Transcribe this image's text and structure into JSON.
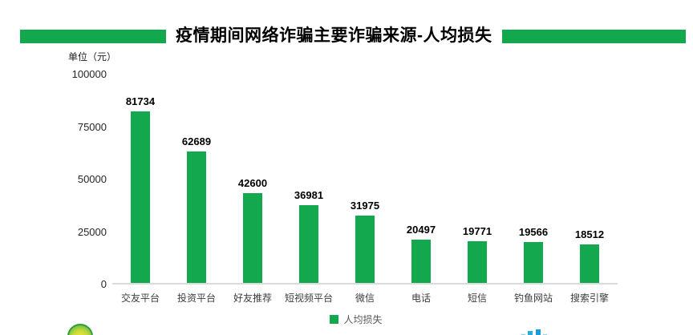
{
  "title": "疫情期间网络诈骗主要诈骗来源-人均损失",
  "unit_label": "单位（元）",
  "legend": {
    "label": "人均损失"
  },
  "colors": {
    "accent_green": "#14A84E",
    "axis_line": "#DBDBDB",
    "value_label": "#000000",
    "category_label": "#3D3D3D",
    "legend_label": "#595959",
    "logo_blue_dark": "#1B9CD8",
    "logo_blue_light": "#7FD0F0"
  },
  "chart_data": {
    "type": "bar",
    "title": "疫情期间网络诈骗主要诈骗来源-人均损失",
    "unit": "单位（元）",
    "series_name": "人均损失",
    "categories": [
      "交友平台",
      "投资平台",
      "好友推荐",
      "短视频平台",
      "微信",
      "电话",
      "短信",
      "钓鱼网站",
      "搜索引擎"
    ],
    "values": [
      81734,
      62689,
      42600,
      36981,
      31975,
      20497,
      19771,
      19566,
      18512
    ],
    "yticks": [
      0,
      25000,
      50000,
      75000,
      100000
    ],
    "ylim": [
      0,
      100000
    ],
    "grid": false,
    "legend_position": "bottom",
    "data_labels": true
  }
}
